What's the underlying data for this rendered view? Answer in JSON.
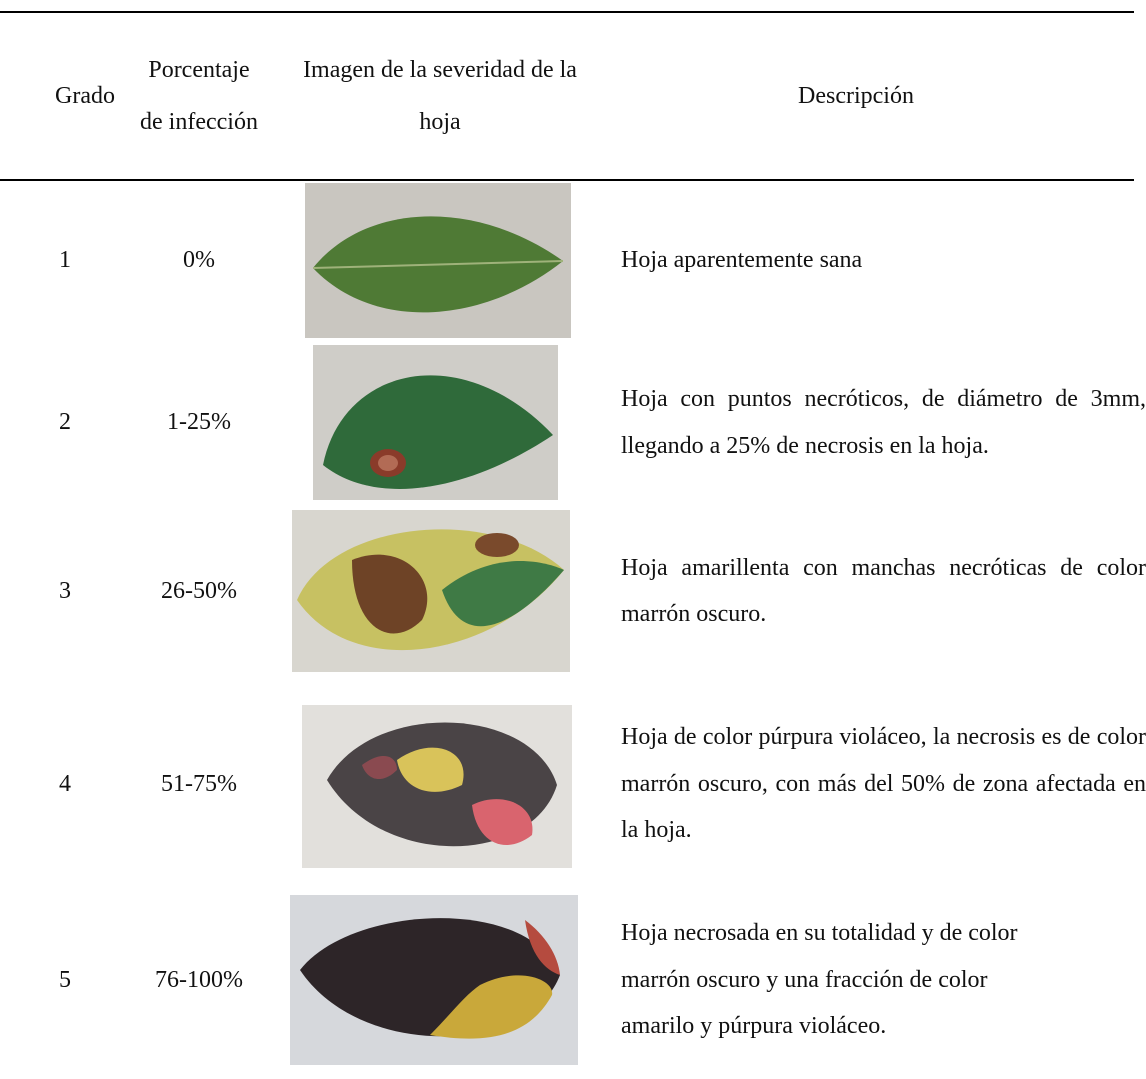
{
  "table": {
    "header": [
      "Grado",
      "Porcentaje de infección",
      "Imagen de la severidad de la hoja",
      "Descripción"
    ],
    "rows": [
      [
        "1",
        "0%",
        "Hoja aparentemente sana"
      ],
      [
        "2",
        "1-25%",
        "Hoja con puntos necróticos, de diámetro de 3mm, llegando a 25% de necrosis en la hoja."
      ],
      [
        "3",
        "26-50%",
        "Hoja amarillenta con manchas necróticas de color marrón oscuro."
      ],
      [
        "4",
        "51-75%",
        "Hoja de color púrpura violáceo, la necrosis es de color marrón oscuro, con más del 50% de zona afectada en la hoja."
      ],
      [
        "5",
        "76-100%",
        "Hoja necrosada en su totalidad y de color marrón oscuro y una fracción de color amarilo y púrpura violáceo."
      ]
    ]
  }
}
